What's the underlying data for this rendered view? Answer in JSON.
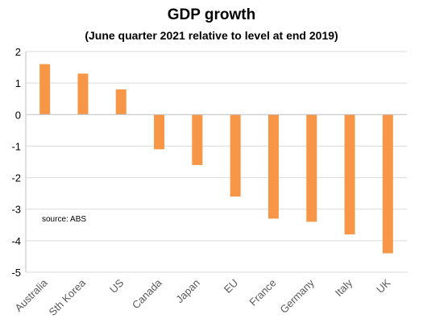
{
  "chart_data": {
    "type": "bar",
    "title": "GDP growth",
    "subtitle": "(June quarter 2021 relative to level at end 2019)",
    "xlabel": "",
    "ylabel": "",
    "categories": [
      "Australia",
      "Sth Korea",
      "US",
      "Canada",
      "Japan",
      "EU",
      "France",
      "Germany",
      "Italy",
      "UK"
    ],
    "values": [
      1.6,
      1.3,
      0.8,
      -1.1,
      -1.6,
      -2.6,
      -3.3,
      -3.4,
      -3.8,
      -4.4
    ],
    "ylim": [
      -5,
      2
    ],
    "yticks": [
      2,
      1,
      0,
      -1,
      -2,
      -3,
      -4,
      -5
    ],
    "grid": true,
    "bar_color": "#F79646",
    "annotation": "source:  ABS"
  }
}
